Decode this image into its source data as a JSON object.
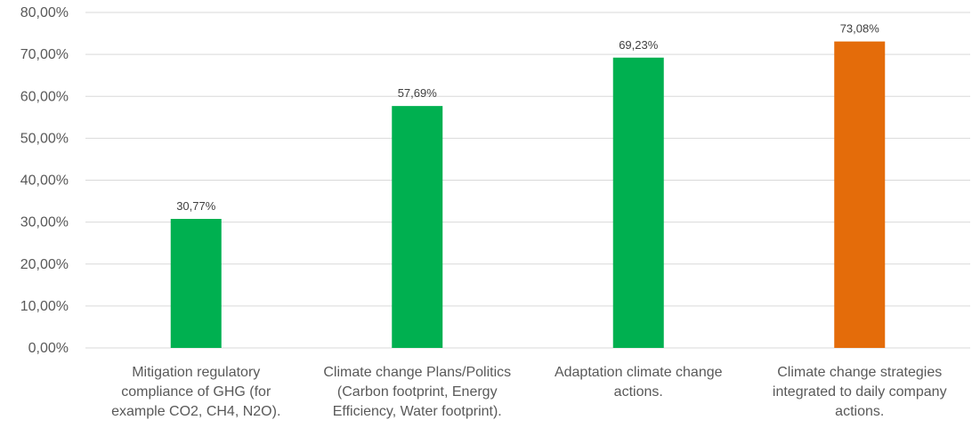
{
  "chart_data": {
    "type": "bar",
    "categories": [
      [
        "Mitigation regulatory",
        "compliance of GHG (for",
        "example CO2, CH4, N2O)."
      ],
      [
        "Climate change Plans/Politics",
        "(Carbon footprint, Energy",
        "Efficiency, Water footprint)."
      ],
      [
        "Adaptation climate change",
        "actions."
      ],
      [
        "Climate change strategies",
        "integrated to daily company",
        "actions."
      ]
    ],
    "values": [
      30.77,
      57.69,
      69.23,
      73.08
    ],
    "data_labels": [
      "30,77%",
      "57,69%",
      "69,23%",
      "73,08%"
    ],
    "bar_colors": [
      "#00b050",
      "#00b050",
      "#00b050",
      "#e46c0a"
    ],
    "ylim": [
      0,
      80
    ],
    "yticks": [
      0,
      10,
      20,
      30,
      40,
      50,
      60,
      70,
      80
    ],
    "ytick_labels": [
      "0,00%",
      "10,00%",
      "20,00%",
      "30,00%",
      "40,00%",
      "50,00%",
      "60,00%",
      "70,00%",
      "80,00%"
    ],
    "grid": true,
    "gridline_color": "#d9d9d9",
    "title": "",
    "xlabel": "",
    "ylabel": ""
  }
}
